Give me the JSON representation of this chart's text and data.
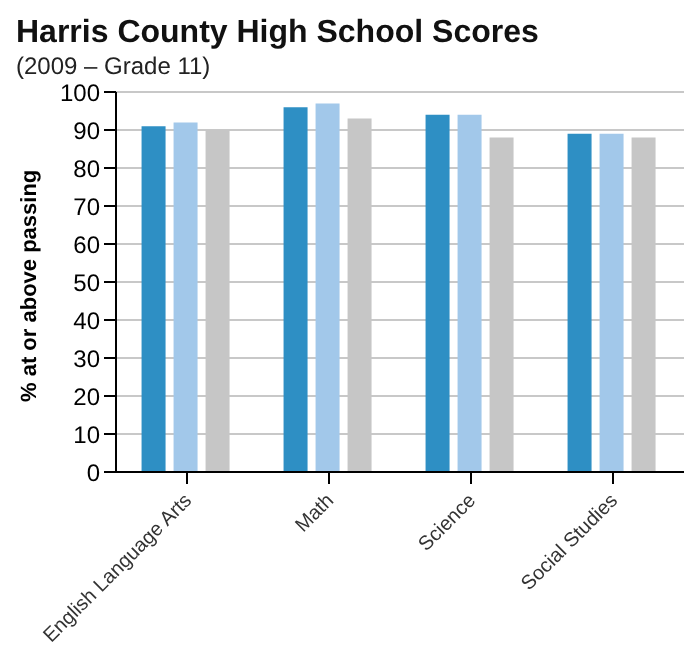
{
  "chart_data": {
    "type": "bar",
    "title": "Harris County High School Scores",
    "subtitle": "(2009 – Grade 11)",
    "ylabel": "% at or above passing",
    "categories": [
      "English Language Arts",
      "Math",
      "Science",
      "Social Studies"
    ],
    "series": [
      {
        "color": "#2e8fc4",
        "values": [
          91,
          96,
          94,
          89
        ]
      },
      {
        "color": "#a2c8ea",
        "values": [
          92,
          97,
          94,
          89
        ]
      },
      {
        "color": "#c6c6c6",
        "values": [
          90,
          93,
          88,
          88
        ]
      }
    ],
    "ylim": [
      0,
      100
    ],
    "yticks": [
      0,
      10,
      20,
      30,
      40,
      50,
      60,
      70,
      80,
      90,
      100
    ],
    "grid": "y"
  }
}
